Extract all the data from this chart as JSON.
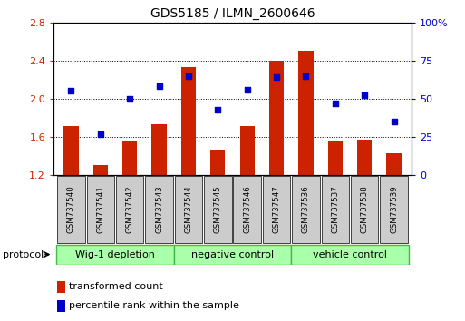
{
  "title": "GDS5185 / ILMN_2600646",
  "samples": [
    "GSM737540",
    "GSM737541",
    "GSM737542",
    "GSM737543",
    "GSM737544",
    "GSM737545",
    "GSM737546",
    "GSM737547",
    "GSM737536",
    "GSM737537",
    "GSM737538",
    "GSM737539"
  ],
  "transformed_counts": [
    1.71,
    1.3,
    1.56,
    1.73,
    2.33,
    1.47,
    1.71,
    2.4,
    2.5,
    1.55,
    1.57,
    1.43
  ],
  "percentile_ranks": [
    55,
    27,
    50,
    58,
    65,
    43,
    56,
    64,
    65,
    47,
    52,
    35
  ],
  "bar_color": "#cc2200",
  "dot_color": "#0000cc",
  "ylim_left": [
    1.2,
    2.8
  ],
  "ylim_right": [
    0,
    100
  ],
  "yticks_left": [
    1.2,
    1.6,
    2.0,
    2.4,
    2.8
  ],
  "yticks_right": [
    0,
    25,
    50,
    75,
    100
  ],
  "ytick_labels_right": [
    "0",
    "25",
    "50",
    "75",
    "100%"
  ],
  "groups": [
    {
      "label": "Wig-1 depletion",
      "start": 0,
      "end": 4
    },
    {
      "label": "negative control",
      "start": 4,
      "end": 8
    },
    {
      "label": "vehicle control",
      "start": 8,
      "end": 12
    }
  ],
  "group_color": "#aaffaa",
  "group_border_color": "#44bb44",
  "tick_label_bg": "#cccccc",
  "legend_red_label": "transformed count",
  "legend_blue_label": "percentile rank within the sample",
  "base_value": 1.2,
  "bar_width": 0.5
}
